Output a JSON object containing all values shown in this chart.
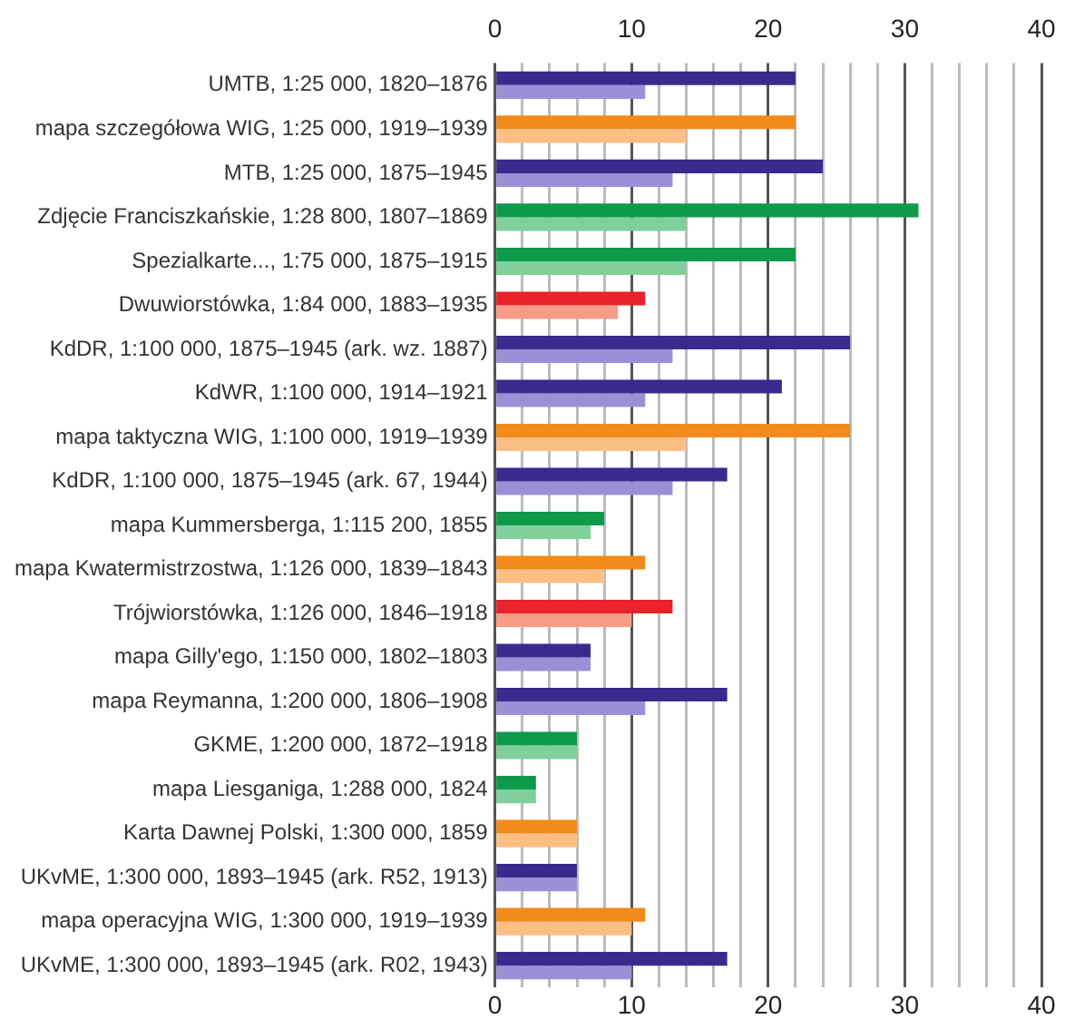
{
  "chart_data": {
    "type": "bar",
    "orientation": "horizontal",
    "categories": [
      "UMTB, 1:25 000, 1820–1876",
      "mapa szczegółowa WIG, 1:25 000, 1919–1939",
      "MTB, 1:25 000, 1875–1945",
      "Zdjęcie Franciszkańskie, 1:28 800, 1807–1869",
      "Spezialkarte..., 1:75 000, 1875–1915",
      "Dwuwiorstówka, 1:84 000, 1883–1935",
      "KdDR, 1:100 000, 1875–1945 (ark. wz. 1887)",
      "KdWR, 1:100 000, 1914–1921",
      "mapa taktyczna WIG, 1:100 000, 1919–1939",
      "KdDR, 1:100 000, 1875–1945 (ark. 67, 1944)",
      "mapa Kummersberga, 1:115 200, 1855",
      "mapa Kwatermistrzostwa, 1:126 000, 1839–1843",
      "Trójwiorstówka, 1:126 000, 1846–1918",
      "mapa Gilly'ego, 1:150 000, 1802–1803",
      "mapa Reymanna, 1:200 000, 1806–1908",
      "GKME, 1:200 000, 1872–1918",
      "mapa Liesganiga, 1:288 000, 1824",
      "Karta Dawnej Polski, 1:300 000, 1859",
      "UKvME, 1:300 000, 1893–1945 (ark. R52, 1913)",
      "mapa operacyjna WIG, 1:300 000, 1919–1939",
      "UKvME, 1:300 000, 1893–1945 (ark. R02, 1943)"
    ],
    "series": [
      {
        "values": [
          22,
          22,
          24,
          31,
          22,
          11,
          26,
          21,
          26,
          17,
          8,
          11,
          13,
          7,
          17,
          6,
          3,
          6,
          6,
          11,
          17
        ],
        "colors": [
          "#3b2a8e",
          "#f28a1c",
          "#3b2a8e",
          "#0e9a4a",
          "#0e9a4a",
          "#e8232b",
          "#3b2a8e",
          "#3b2a8e",
          "#f28a1c",
          "#3b2a8e",
          "#0e9a4a",
          "#f28a1c",
          "#e8232b",
          "#3b2a8e",
          "#3b2a8e",
          "#0e9a4a",
          "#0e9a4a",
          "#f28a1c",
          "#3b2a8e",
          "#f28a1c",
          "#3b2a8e"
        ]
      },
      {
        "values": [
          11,
          14,
          13,
          14,
          14,
          9,
          13,
          11,
          14,
          13,
          7,
          8,
          10,
          7,
          11,
          6,
          3,
          6,
          6,
          10,
          10
        ],
        "colors": [
          "#9b90d6",
          "#fbbf85",
          "#9b90d6",
          "#80cf9c",
          "#80cf9c",
          "#f59c86",
          "#9b90d6",
          "#9b90d6",
          "#fbbf85",
          "#9b90d6",
          "#80cf9c",
          "#fbbf85",
          "#f59c86",
          "#9b90d6",
          "#9b90d6",
          "#80cf9c",
          "#80cf9c",
          "#fbbf85",
          "#9b90d6",
          "#fbbf85",
          "#9b90d6"
        ]
      }
    ],
    "xlim": [
      0,
      40
    ],
    "xticks": [
      0,
      {
        "value": 2,
        "label": null
      },
      {
        "value": 4,
        "label": null
      },
      {
        "value": 6,
        "label": null
      },
      {
        "value": 8,
        "label": null
      },
      10,
      {
        "value": 12,
        "label": null
      },
      {
        "value": 14,
        "label": null
      },
      {
        "value": 16,
        "label": null
      },
      {
        "value": 18,
        "label": null
      },
      20,
      {
        "value": 22,
        "label": null
      },
      {
        "value": 24,
        "label": null
      },
      {
        "value": 26,
        "label": null
      },
      {
        "value": 28,
        "label": null
      },
      30,
      {
        "value": 32,
        "label": null
      },
      {
        "value": 34,
        "label": null
      },
      {
        "value": 36,
        "label": null
      },
      {
        "value": 38,
        "label": null
      },
      40
    ],
    "x2lim": [
      0,
      40
    ],
    "x2ticks": [
      0,
      10,
      20,
      30,
      40
    ],
    "grid": "x",
    "legend": false
  }
}
